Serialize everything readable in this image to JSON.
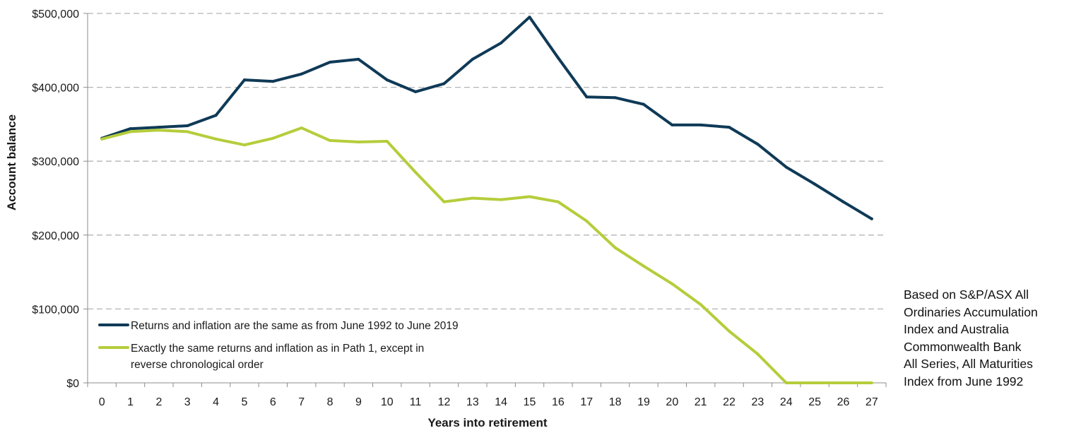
{
  "chart_data": {
    "type": "line",
    "title": "",
    "xlabel": "Years into retirement",
    "ylabel": "Account balance",
    "x": [
      0,
      1,
      2,
      3,
      4,
      5,
      6,
      7,
      8,
      9,
      10,
      11,
      12,
      13,
      14,
      15,
      16,
      17,
      18,
      19,
      20,
      21,
      22,
      23,
      24,
      25,
      26,
      27
    ],
    "ylim": [
      0,
      500000
    ],
    "yticks": [
      0,
      100000,
      200000,
      300000,
      400000,
      500000
    ],
    "ytick_labels": [
      "$0",
      "$100,000",
      "$200,000",
      "$300,000",
      "$400,000",
      "$500,000"
    ],
    "grid": true,
    "legend_position": "bottom-left inside plot",
    "series": [
      {
        "name": "Returns and inflation are the same as from June 1992 to June 2019",
        "color": "#0f3a57",
        "values": [
          331000,
          344000,
          346000,
          348000,
          362000,
          410000,
          408000,
          418000,
          434000,
          438000,
          410000,
          394000,
          405000,
          438000,
          460000,
          495000,
          440000,
          387000,
          386000,
          377000,
          349000,
          349000,
          346000,
          323000,
          292000,
          269000,
          245000,
          222000
        ]
      },
      {
        "name": "Exactly the same returns and inflation as in Path 1, except in reverse chronological order",
        "color": "#b5cd3b",
        "values": [
          330000,
          340000,
          342000,
          340000,
          330000,
          322000,
          331000,
          345000,
          328000,
          326000,
          327000,
          285000,
          245000,
          250000,
          248000,
          252000,
          245000,
          219000,
          183000,
          158000,
          134000,
          106000,
          70000,
          39000,
          0,
          0,
          0,
          0
        ]
      }
    ]
  },
  "note": {
    "lines": [
      "Based on S&P/ASX All",
      "Ordinaries Accumulation",
      "Index and Australia",
      "Commonwealth Bank",
      "All Series, All Maturities",
      "Index from June 1992"
    ]
  }
}
